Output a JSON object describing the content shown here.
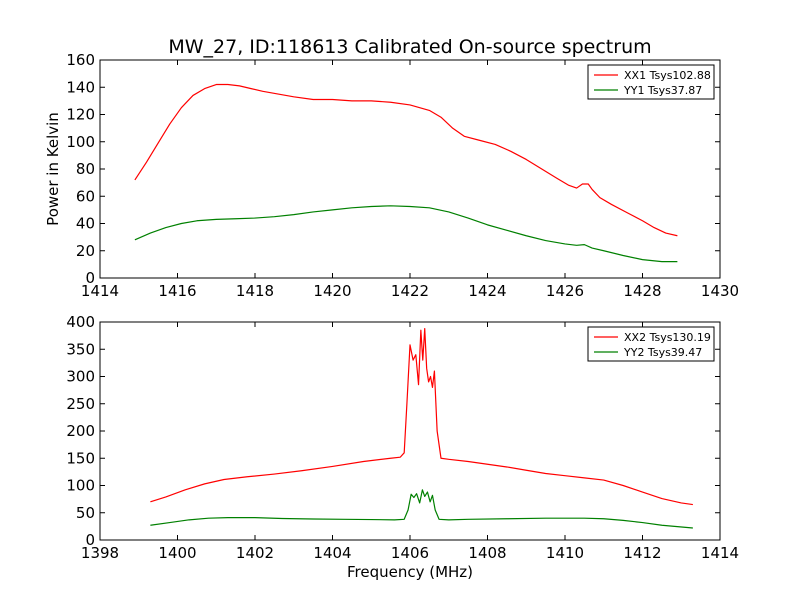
{
  "chart_data": [
    {
      "type": "line",
      "title": "MW_27, ID:118613 Calibrated On-source spectrum",
      "xlabel": "",
      "ylabel": "Power in Kelvin",
      "xlim": [
        1414,
        1430
      ],
      "ylim": [
        0,
        160
      ],
      "xticks": [
        1414,
        1416,
        1418,
        1420,
        1422,
        1424,
        1426,
        1428,
        1430
      ],
      "yticks": [
        0,
        20,
        40,
        60,
        80,
        100,
        120,
        140,
        160
      ],
      "legend": "top-right",
      "grid": false,
      "series": [
        {
          "name": "XX1 Tsys102.88",
          "color": "#ff0000",
          "x": [
            1414.9,
            1415.2,
            1415.5,
            1415.8,
            1416.1,
            1416.4,
            1416.7,
            1417.0,
            1417.3,
            1417.6,
            1417.9,
            1418.2,
            1418.6,
            1419.0,
            1419.5,
            1420.0,
            1420.5,
            1421.0,
            1421.5,
            1422.0,
            1422.5,
            1422.8,
            1423.1,
            1423.4,
            1423.8,
            1424.2,
            1424.6,
            1425.0,
            1425.4,
            1425.8,
            1426.1,
            1426.3,
            1426.45,
            1426.6,
            1426.7,
            1426.9,
            1427.2,
            1427.6,
            1428.0,
            1428.3,
            1428.6,
            1428.9
          ],
          "y": [
            72,
            85,
            99,
            113,
            125,
            134,
            139,
            142,
            142,
            141,
            139,
            137,
            135,
            133,
            131,
            131,
            130,
            130,
            129,
            127,
            123,
            118,
            110,
            104,
            101,
            98,
            93,
            87,
            80,
            73,
            68,
            66,
            69,
            69,
            65,
            59,
            54,
            48,
            42,
            37,
            33,
            31
          ]
        },
        {
          "name": "YY1 Tsys37.87",
          "color": "#008000",
          "x": [
            1414.9,
            1415.3,
            1415.7,
            1416.1,
            1416.5,
            1417.0,
            1417.5,
            1418.0,
            1418.5,
            1419.0,
            1419.5,
            1420.0,
            1420.5,
            1421.0,
            1421.5,
            1422.0,
            1422.5,
            1423.0,
            1423.5,
            1424.0,
            1424.5,
            1425.0,
            1425.5,
            1426.0,
            1426.3,
            1426.5,
            1426.7,
            1427.0,
            1427.5,
            1428.0,
            1428.5,
            1428.9
          ],
          "y": [
            28,
            33,
            37,
            40,
            42,
            43,
            43.5,
            44,
            45,
            46.5,
            48.5,
            50,
            51.5,
            52.5,
            53,
            52.5,
            51.5,
            48.5,
            44,
            39,
            35,
            31,
            27.5,
            25,
            24,
            24.5,
            22,
            20,
            16.5,
            13.5,
            12,
            12
          ]
        }
      ]
    },
    {
      "type": "line",
      "title": "",
      "xlabel": "Frequency (MHz)",
      "ylabel": "",
      "xlim": [
        1398,
        1414
      ],
      "ylim": [
        0,
        400
      ],
      "xticks": [
        1398,
        1400,
        1402,
        1404,
        1406,
        1408,
        1410,
        1412,
        1414
      ],
      "yticks": [
        0,
        50,
        100,
        150,
        200,
        250,
        300,
        350,
        400
      ],
      "legend": "top-right",
      "grid": false,
      "series": [
        {
          "name": "XX2 Tsys130.19",
          "color": "#ff0000",
          "x": [
            1399.3,
            1399.7,
            1400.2,
            1400.7,
            1401.2,
            1401.8,
            1402.5,
            1403.2,
            1404.0,
            1404.8,
            1405.5,
            1405.75,
            1405.85,
            1405.92,
            1406.0,
            1406.08,
            1406.15,
            1406.22,
            1406.28,
            1406.33,
            1406.38,
            1406.43,
            1406.48,
            1406.53,
            1406.58,
            1406.63,
            1406.7,
            1406.8,
            1407.0,
            1407.5,
            1408.0,
            1408.5,
            1409.0,
            1409.5,
            1410.0,
            1410.5,
            1411.0,
            1411.5,
            1412.0,
            1412.5,
            1413.0,
            1413.3
          ],
          "y": [
            70,
            79,
            92,
            103,
            111,
            116,
            121,
            127,
            135,
            144,
            150,
            152,
            160,
            250,
            358,
            330,
            340,
            285,
            385,
            330,
            388,
            315,
            290,
            300,
            280,
            310,
            200,
            150,
            148,
            144,
            139,
            134,
            128,
            122,
            118,
            114,
            110,
            100,
            88,
            76,
            68,
            65
          ]
        },
        {
          "name": "YY2 Tsys39.47",
          "color": "#008000",
          "x": [
            1399.3,
            1399.8,
            1400.3,
            1400.8,
            1401.3,
            1402.0,
            1402.7,
            1403.5,
            1404.3,
            1405.0,
            1405.6,
            1405.85,
            1405.95,
            1406.03,
            1406.1,
            1406.17,
            1406.25,
            1406.32,
            1406.38,
            1406.45,
            1406.52,
            1406.58,
            1406.65,
            1406.75,
            1407.0,
            1407.5,
            1408.5,
            1409.5,
            1410.5,
            1411.0,
            1411.5,
            1412.0,
            1412.5,
            1413.3
          ],
          "y": [
            27,
            32,
            37,
            40,
            41,
            41,
            39.5,
            38.5,
            38,
            37.5,
            37,
            38,
            55,
            84,
            78,
            85,
            68,
            92,
            80,
            88,
            70,
            82,
            55,
            38,
            37,
            38,
            39,
            40,
            40,
            39,
            36,
            32,
            27,
            22
          ]
        }
      ]
    }
  ]
}
